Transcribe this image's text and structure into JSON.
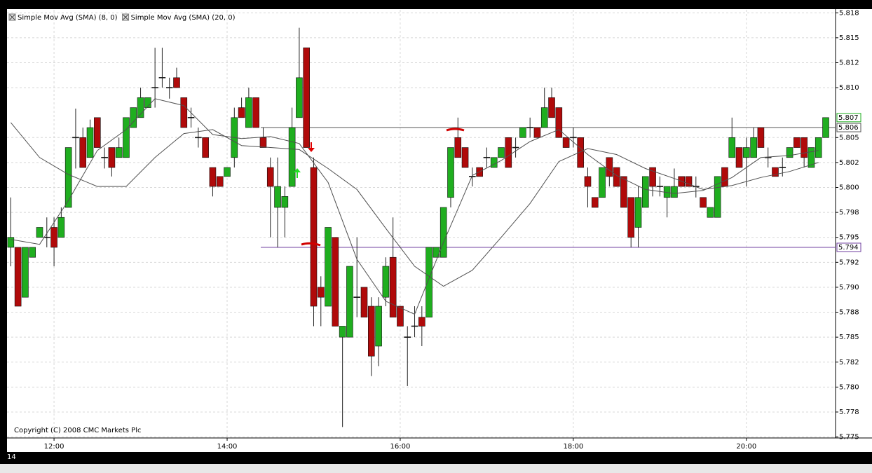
{
  "chart_data": {
    "type": "candlestick",
    "corner_label": "14",
    "copyright": "Copyright (C) 2008 CMC Markets Plc",
    "colors": {
      "up": "#1fae1f",
      "down": "#b00a0a",
      "sma": "#505050"
    },
    "grid": true,
    "x": [
      690,
      695,
      700,
      705,
      710,
      715,
      720,
      725,
      730,
      735,
      740,
      745,
      750,
      755,
      760,
      765,
      770,
      775,
      780,
      785,
      790,
      795,
      800,
      805,
      810,
      815,
      820,
      825,
      830,
      835,
      840,
      845,
      850,
      855,
      860,
      865,
      870,
      875,
      880,
      885,
      890,
      895,
      900,
      905,
      910,
      915,
      920,
      925,
      930,
      935,
      940,
      945,
      950,
      955,
      960,
      965,
      970,
      975,
      980,
      985,
      990,
      995,
      1000,
      1005,
      1010,
      1015,
      1020,
      1025,
      1030,
      1035,
      1040,
      1045,
      1050,
      1055,
      1060,
      1065,
      1070,
      1075,
      1080,
      1085,
      1090,
      1095,
      1100,
      1105,
      1110,
      1115,
      1120,
      1125,
      1130,
      1135,
      1140,
      1145,
      1150,
      1155,
      1160,
      1165,
      1170,
      1175,
      1180,
      1185,
      1190,
      1195,
      1200,
      1205,
      1210,
      1215,
      1220,
      1225,
      1230,
      1235,
      1240,
      1245,
      1250,
      1255
    ],
    "open": [
      5.794,
      5.794,
      5.789,
      5.793,
      5.795,
      5.795,
      5.796,
      5.795,
      5.798,
      5.805,
      5.805,
      5.803,
      5.807,
      5.803,
      5.804,
      5.803,
      5.803,
      5.806,
      5.807,
      5.808,
      5.81,
      5.811,
      5.81,
      5.811,
      5.809,
      5.807,
      5.805,
      5.805,
      5.802,
      5.8011,
      5.8011,
      5.803,
      5.808,
      5.806,
      5.809,
      5.805,
      5.802,
      5.798,
      5.798,
      5.8001,
      5.807,
      5.814,
      5.802,
      5.79,
      5.7881,
      5.795,
      5.785,
      5.785,
      5.789,
      5.79,
      5.7881,
      5.7841,
      5.789,
      5.793,
      5.7881,
      5.785,
      5.7861,
      5.787,
      5.787,
      5.793,
      5.793,
      5.799,
      5.805,
      5.804,
      5.8011,
      5.802,
      5.803,
      5.802,
      5.803,
      5.805,
      5.804,
      5.805,
      5.806,
      5.806,
      5.806,
      5.809,
      5.808,
      5.805,
      5.805,
      5.805,
      5.8011,
      5.799,
      5.799,
      5.803,
      5.802,
      5.8011,
      5.799,
      5.796,
      5.798,
      5.802,
      5.8001,
      5.799,
      5.799,
      5.8011,
      5.8011,
      5.8001,
      5.799,
      5.797,
      5.797,
      5.802,
      5.803,
      5.804,
      5.803,
      5.803,
      5.806,
      5.803,
      5.802,
      5.802,
      5.803,
      5.805,
      5.805,
      5.802,
      5.803,
      5.805
    ],
    "high": [
      5.799,
      5.794,
      5.794,
      5.794,
      5.796,
      5.797,
      5.797,
      5.798,
      5.804,
      5.8079,
      5.806,
      5.8068,
      5.807,
      5.804,
      5.804,
      5.805,
      5.807,
      5.808,
      5.81,
      5.809,
      5.814,
      5.814,
      5.811,
      5.812,
      5.809,
      5.808,
      5.806,
      5.805,
      5.802,
      5.8011,
      5.802,
      5.808,
      5.809,
      5.81,
      5.809,
      5.806,
      5.803,
      5.803,
      5.8001,
      5.808,
      5.816,
      5.814,
      5.803,
      5.7911,
      5.796,
      5.795,
      5.7861,
      5.7921,
      5.795,
      5.79,
      5.789,
      5.789,
      5.793,
      5.797,
      5.7881,
      5.7861,
      5.7881,
      5.7881,
      5.794,
      5.794,
      5.798,
      5.804,
      5.807,
      5.804,
      5.802,
      5.802,
      5.804,
      5.803,
      5.804,
      5.805,
      5.805,
      5.806,
      5.807,
      5.806,
      5.81,
      5.81,
      5.808,
      5.805,
      5.806,
      5.805,
      5.802,
      5.799,
      5.802,
      5.803,
      5.802,
      5.8011,
      5.799,
      5.8001,
      5.8011,
      5.802,
      5.8011,
      5.8001,
      5.8019,
      5.8011,
      5.8011,
      5.8011,
      5.799,
      5.798,
      5.8011,
      5.802,
      5.807,
      5.804,
      5.805,
      5.806,
      5.806,
      5.804,
      5.802,
      5.803,
      5.804,
      5.805,
      5.805,
      5.804,
      5.805,
      5.807
    ],
    "low": [
      5.7921,
      5.7881,
      5.789,
      5.793,
      5.795,
      5.794,
      5.7921,
      5.795,
      5.798,
      5.8019,
      5.802,
      5.803,
      5.804,
      5.8019,
      5.8011,
      5.803,
      5.803,
      5.806,
      5.807,
      5.808,
      5.808,
      5.81,
      5.8089,
      5.81,
      5.806,
      5.806,
      5.804,
      5.803,
      5.7991,
      5.8001,
      5.8011,
      5.802,
      5.807,
      5.806,
      5.806,
      5.804,
      5.795,
      5.794,
      5.795,
      5.8001,
      5.807,
      5.804,
      5.7861,
      5.7861,
      5.7881,
      5.7861,
      5.776,
      5.785,
      5.787,
      5.787,
      5.7811,
      5.7821,
      5.7881,
      5.787,
      5.7861,
      5.7801,
      5.785,
      5.7841,
      5.787,
      5.793,
      5.793,
      5.798,
      5.803,
      5.802,
      5.8001,
      5.8011,
      5.802,
      5.802,
      5.803,
      5.802,
      5.803,
      5.805,
      5.805,
      5.805,
      5.806,
      5.807,
      5.805,
      5.804,
      5.804,
      5.802,
      5.798,
      5.798,
      5.799,
      5.8001,
      5.8001,
      5.798,
      5.794,
      5.794,
      5.798,
      5.7991,
      5.7991,
      5.797,
      5.799,
      5.8001,
      5.8001,
      5.799,
      5.798,
      5.797,
      5.797,
      5.8001,
      5.803,
      5.802,
      5.8001,
      5.803,
      5.804,
      5.802,
      5.8011,
      5.8011,
      5.803,
      5.804,
      5.802,
      5.802,
      5.803,
      5.805
    ],
    "close": [
      5.795,
      5.7881,
      5.794,
      5.794,
      5.796,
      5.795,
      5.794,
      5.797,
      5.804,
      5.805,
      5.802,
      5.806,
      5.804,
      5.803,
      5.802,
      5.804,
      5.807,
      5.808,
      5.809,
      5.809,
      5.81,
      5.811,
      5.81,
      5.81,
      5.806,
      5.807,
      5.805,
      5.803,
      5.8001,
      5.8001,
      5.802,
      5.807,
      5.807,
      5.809,
      5.806,
      5.804,
      5.8001,
      5.8001,
      5.7991,
      5.806,
      5.811,
      5.804,
      5.7881,
      5.789,
      5.796,
      5.7861,
      5.7861,
      5.7921,
      5.789,
      5.787,
      5.7831,
      5.7881,
      5.7921,
      5.787,
      5.7861,
      5.785,
      5.7861,
      5.7861,
      5.794,
      5.794,
      5.798,
      5.804,
      5.803,
      5.802,
      5.8011,
      5.8011,
      5.803,
      5.803,
      5.804,
      5.802,
      5.804,
      5.806,
      5.806,
      5.805,
      5.808,
      5.807,
      5.805,
      5.804,
      5.805,
      5.802,
      5.8001,
      5.798,
      5.802,
      5.8011,
      5.8001,
      5.798,
      5.795,
      5.799,
      5.8011,
      5.8001,
      5.8001,
      5.8001,
      5.8001,
      5.8001,
      5.8001,
      5.8001,
      5.798,
      5.798,
      5.8011,
      5.8001,
      5.805,
      5.802,
      5.804,
      5.805,
      5.804,
      5.803,
      5.8011,
      5.802,
      5.804,
      5.804,
      5.803,
      5.804,
      5.805,
      5.807
    ],
    "sma": [
      {
        "name": "Simple Mov Avg (SMA) (8, 0)",
        "x": [
          690,
          710,
          730,
          750,
          770,
          790,
          810,
          830,
          850,
          870,
          890,
          910,
          930,
          950,
          970,
          990,
          1010,
          1030,
          1050,
          1070,
          1090,
          1110,
          1130,
          1150,
          1170,
          1190,
          1210,
          1230,
          1250
        ],
        "values": [
          5.7948,
          5.7943,
          5.7987,
          5.8037,
          5.8058,
          5.8089,
          5.8082,
          5.8053,
          5.8049,
          5.8051,
          5.8044,
          5.8005,
          5.7928,
          5.7886,
          5.7873,
          5.7945,
          5.8012,
          5.8027,
          5.8046,
          5.8058,
          5.8033,
          5.8012,
          5.7998,
          5.7994,
          5.7997,
          5.801,
          5.803,
          5.8032,
          5.8037
        ]
      },
      {
        "name": "Simple Mov Avg (SMA) (20, 0)",
        "x": [
          690,
          710,
          730,
          750,
          770,
          790,
          810,
          830,
          850,
          870,
          890,
          910,
          930,
          950,
          970,
          990,
          1010,
          1030,
          1050,
          1070,
          1090,
          1110,
          1130,
          1150,
          1170,
          1190,
          1210,
          1230,
          1250
        ],
        "values": [
          5.8065,
          5.803,
          5.8013,
          5.8001,
          5.8001,
          5.803,
          5.8054,
          5.8058,
          5.8042,
          5.804,
          5.8038,
          5.8019,
          5.7998,
          5.7959,
          5.7921,
          5.7901,
          5.7917,
          5.795,
          5.7984,
          5.8026,
          5.8039,
          5.8033,
          5.8019,
          5.8009,
          5.7998,
          5.8002,
          5.801,
          5.8016,
          5.8025
        ]
      }
    ],
    "levels": [
      5.806,
      5.794
    ],
    "last_price": 5.807,
    "xlim": [
      687.4,
      1261.8
    ],
    "xticks": [
      {
        "value": 720,
        "label": "12:00"
      },
      {
        "value": 840,
        "label": "14:00"
      },
      {
        "value": 960,
        "label": "16:00"
      },
      {
        "value": 1080,
        "label": "18:00"
      },
      {
        "value": 1200,
        "label": "20:00"
      }
    ],
    "ylim": [
      5.7749,
      5.8178
    ],
    "yticks": [
      5.775,
      {
        "value": 5.7775,
        "label": "5.778"
      },
      {
        "value": 5.78,
        "label": "5.780"
      },
      {
        "value": 5.7825,
        "label": "5.782"
      },
      5.785,
      {
        "value": 5.7875,
        "label": "5.788"
      },
      {
        "value": 5.79,
        "label": "5.790"
      },
      {
        "value": 5.7925,
        "label": "5.792"
      },
      5.795,
      {
        "value": 5.7975,
        "label": "5.798"
      },
      {
        "value": 5.8,
        "label": "5.800"
      },
      {
        "value": 5.8025,
        "label": "5.802"
      },
      5.805,
      {
        "value": 5.81,
        "label": "5.810"
      },
      {
        "value": 5.8125,
        "label": "5.812"
      },
      5.815,
      {
        "value": 5.8175,
        "label": "5.818"
      }
    ]
  }
}
